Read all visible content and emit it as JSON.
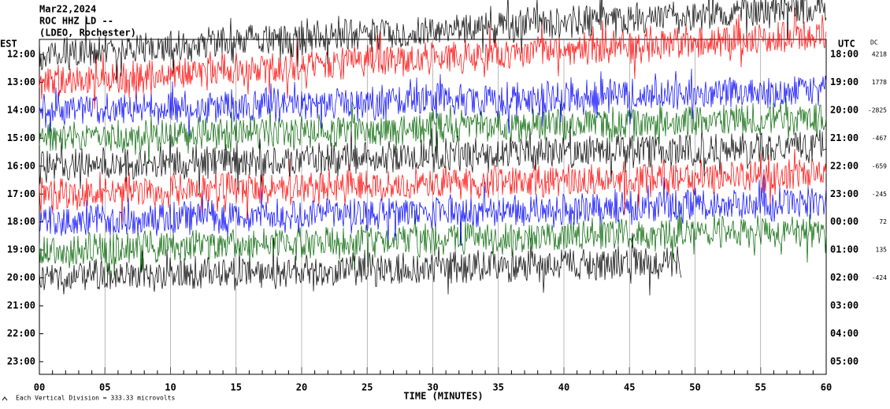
{
  "header": {
    "date": "Mar22,2024",
    "station": "ROC HHZ LD --",
    "location": "(LDEO, Rochester)"
  },
  "left_axis": {
    "title": "EST",
    "labels": [
      "12:00",
      "13:00",
      "14:00",
      "15:00",
      "16:00",
      "17:00",
      "18:00",
      "19:00",
      "20:00",
      "21:00",
      "22:00",
      "23:00"
    ]
  },
  "right_axis": {
    "title": "UTC",
    "labels": [
      "18:00",
      "19:00",
      "20:00",
      "21:00",
      "22:00",
      "23:00",
      "00:00",
      "01:00",
      "02:00",
      "03:00",
      "04:00",
      "05:00"
    ]
  },
  "dc": {
    "title": "DC",
    "values": [
      "4218",
      "1778",
      "-2825",
      "-467",
      "-659",
      "-245",
      "72",
      "135",
      "-424"
    ]
  },
  "x_axis": {
    "title": "TIME (MINUTES)",
    "labels": [
      "00",
      "05",
      "10",
      "15",
      "20",
      "25",
      "30",
      "35",
      "40",
      "45",
      "50",
      "55",
      "60"
    ]
  },
  "footer": "Each Vertical Division =  333.33 microvolts",
  "trace_colors": [
    "#000000",
    "#ff0000",
    "#0000ff",
    "#006400"
  ]
}
